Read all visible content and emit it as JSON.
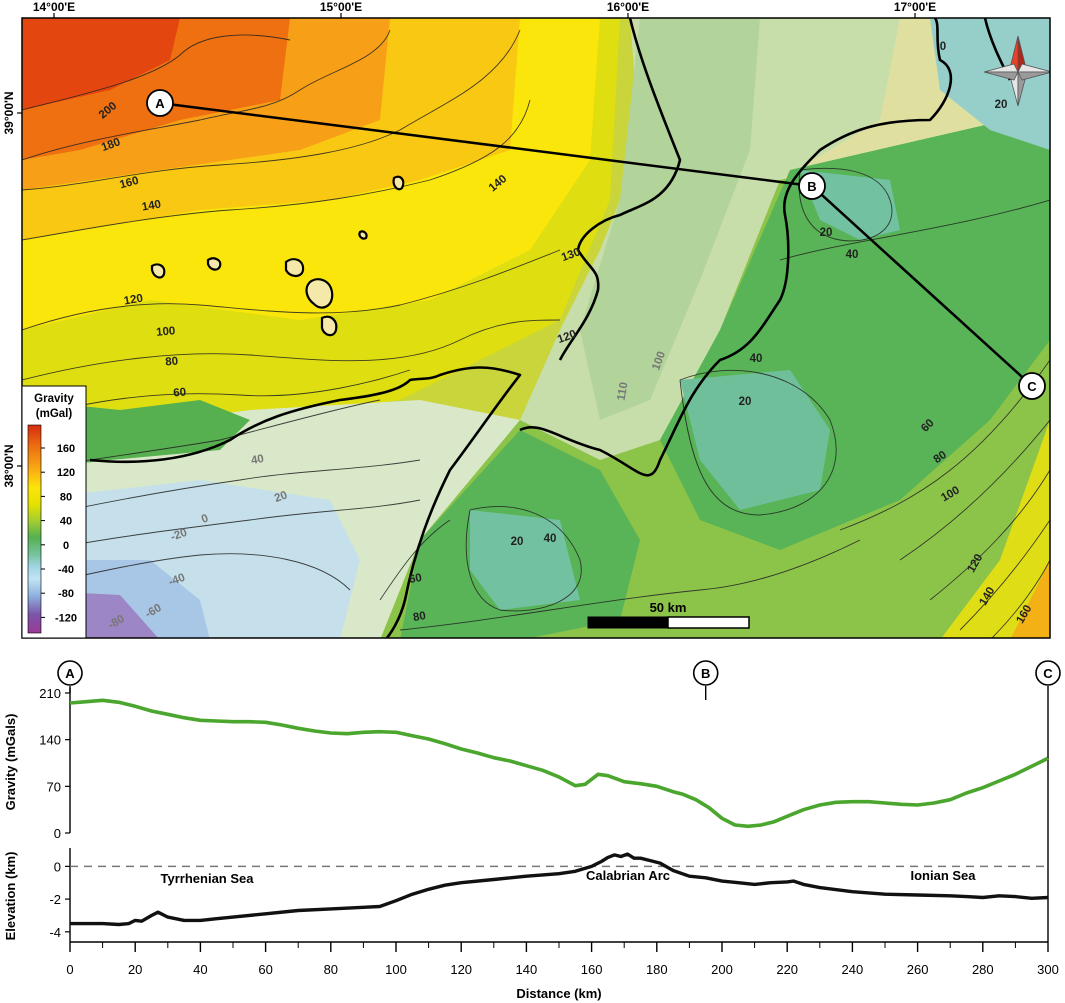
{
  "map": {
    "lon_ticks": [
      {
        "label": "14°00'E",
        "lon": 14.0
      },
      {
        "label": "15°00'E",
        "lon": 15.0
      },
      {
        "label": "16°00'E",
        "lon": 16.0
      },
      {
        "label": "17°00'E",
        "lon": 17.0
      }
    ],
    "lat_ticks": [
      {
        "label": "39°00'N",
        "lat": 39.0
      },
      {
        "label": "38°00'N",
        "lat": 38.0
      }
    ],
    "profile_points": [
      "A",
      "B",
      "C"
    ],
    "scale_bar_label": "50 km",
    "legend": {
      "title_line1": "Gravity",
      "title_line2": "(mGal)",
      "tick_labels": [
        "160",
        "120",
        "80",
        "40",
        "0",
        "-40",
        "-80",
        "-120"
      ],
      "colors": [
        "#d62b0f",
        "#ec6d10",
        "#f8a315",
        "#fde40a",
        "#e6e200",
        "#a6cd32",
        "#54b150",
        "#76c29a",
        "#9fd4e4",
        "#c3e4f3",
        "#8fb2de",
        "#7a56a8",
        "#9a3a96"
      ]
    },
    "contour_labels": [
      {
        "text": "200"
      },
      {
        "text": "180"
      },
      {
        "text": "160"
      },
      {
        "text": "140"
      },
      {
        "text": "140"
      },
      {
        "text": "130"
      },
      {
        "text": "120"
      },
      {
        "text": "120"
      },
      {
        "text": "100"
      },
      {
        "text": "80"
      },
      {
        "text": "60"
      },
      {
        "text": "40"
      },
      {
        "text": "20"
      },
      {
        "text": "0"
      },
      {
        "text": "-20"
      },
      {
        "text": "-40"
      },
      {
        "text": "-60"
      },
      {
        "text": "-80"
      },
      {
        "text": "110"
      },
      {
        "text": "100"
      },
      {
        "text": "40"
      },
      {
        "text": "20"
      },
      {
        "text": "40"
      },
      {
        "text": "20"
      },
      {
        "text": "60"
      },
      {
        "text": "80"
      },
      {
        "text": "20"
      },
      {
        "text": "40"
      },
      {
        "text": "60"
      },
      {
        "text": "80"
      },
      {
        "text": "100"
      },
      {
        "text": "120"
      },
      {
        "text": "140"
      },
      {
        "text": "160"
      },
      {
        "text": "0"
      },
      {
        "text": "20"
      }
    ],
    "compass": "north-arrow"
  },
  "profile": {
    "point_labels": [
      "A",
      "B",
      "C"
    ],
    "gravity_ylabel": "Gravity (mGals)",
    "elevation_ylabel": "Elevation (km)",
    "xlabel": "Distance (km)",
    "region_labels": [
      "Tyrrhenian Sea",
      "Calabrian Arc",
      "Ionian Sea"
    ],
    "colors": {
      "gravity": "#4aa62d",
      "elevation": "#111111",
      "sea_level": "#777777"
    }
  },
  "chart_data": [
    {
      "type": "line",
      "title": "",
      "xlabel": "Distance (km)",
      "ylabel": "Gravity (mGals)",
      "xlim": [
        0,
        300
      ],
      "ylim": [
        0,
        210
      ],
      "xticks": [
        0,
        20,
        40,
        60,
        80,
        100,
        120,
        140,
        160,
        180,
        200,
        220,
        240,
        260,
        280,
        300
      ],
      "yticks": [
        0,
        70,
        140,
        210
      ],
      "grid": false,
      "series": [
        {
          "x": [
            0,
            5,
            10,
            15,
            20,
            25,
            30,
            35,
            40,
            45,
            50,
            55,
            60,
            65,
            70,
            75,
            80,
            85,
            90,
            95,
            100,
            105,
            110,
            115,
            120,
            125,
            130,
            135,
            140,
            145,
            150,
            155,
            158,
            162,
            165,
            170,
            175,
            180,
            185,
            188,
            192,
            196,
            200,
            204,
            208,
            212,
            216,
            220,
            225,
            230,
            235,
            240,
            245,
            250,
            255,
            260,
            265,
            270,
            275,
            280,
            285,
            290,
            295,
            300
          ],
          "values": [
            195,
            197,
            199,
            196,
            190,
            183,
            178,
            173,
            169,
            168,
            167,
            167,
            166,
            162,
            157,
            153,
            150,
            149,
            151,
            152,
            151,
            146,
            141,
            134,
            126,
            120,
            113,
            108,
            101,
            94,
            84,
            71,
            73,
            88,
            86,
            77,
            74,
            70,
            62,
            58,
            50,
            38,
            22,
            12,
            10,
            12,
            17,
            25,
            35,
            42,
            46,
            47,
            47,
            45,
            43,
            42,
            45,
            50,
            60,
            68,
            78,
            88,
            100,
            112
          ]
        }
      ]
    },
    {
      "type": "line",
      "title": "",
      "xlabel": "Distance (km)",
      "ylabel": "Elevation (km)",
      "xlim": [
        0,
        300
      ],
      "ylim": [
        -4.5,
        1
      ],
      "xticks": [
        0,
        20,
        40,
        60,
        80,
        100,
        120,
        140,
        160,
        180,
        200,
        220,
        240,
        260,
        280,
        300
      ],
      "yticks": [
        0,
        -2,
        -4
      ],
      "grid": false,
      "reference_line": {
        "y": 0,
        "style": "dashed"
      },
      "series": [
        {
          "x": [
            0,
            5,
            10,
            15,
            18,
            20,
            22,
            25,
            27,
            30,
            35,
            40,
            45,
            50,
            60,
            70,
            80,
            90,
            95,
            100,
            105,
            110,
            115,
            120,
            130,
            140,
            150,
            155,
            160,
            163,
            165,
            167,
            169,
            171,
            173,
            175,
            178,
            181,
            185,
            190,
            195,
            200,
            205,
            210,
            215,
            220,
            222,
            225,
            230,
            240,
            250,
            260,
            270,
            275,
            280,
            285,
            290,
            295,
            300
          ],
          "values": [
            -3.5,
            -3.5,
            -3.5,
            -3.55,
            -3.5,
            -3.3,
            -3.35,
            -3.0,
            -2.8,
            -3.1,
            -3.3,
            -3.3,
            -3.2,
            -3.1,
            -2.9,
            -2.7,
            -2.6,
            -2.5,
            -2.45,
            -2.1,
            -1.7,
            -1.4,
            -1.15,
            -1.0,
            -0.8,
            -0.6,
            -0.45,
            -0.3,
            0.0,
            0.3,
            0.55,
            0.7,
            0.6,
            0.75,
            0.5,
            0.5,
            0.35,
            0.2,
            -0.25,
            -0.6,
            -0.7,
            -0.9,
            -1.0,
            -1.1,
            -1.0,
            -0.95,
            -0.9,
            -1.1,
            -1.3,
            -1.55,
            -1.7,
            -1.75,
            -1.8,
            -1.85,
            -1.9,
            -1.8,
            -1.85,
            -1.95,
            -1.9
          ]
        }
      ]
    }
  ]
}
